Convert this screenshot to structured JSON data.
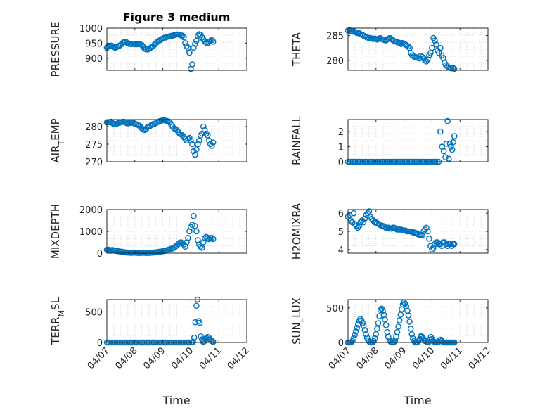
{
  "figure": {
    "title": "Figure 3 medium",
    "xlabel": "Time"
  },
  "style": {
    "marker_color": "#0072BD",
    "axis_color": "#262626",
    "grid_color": "#dcdcdc"
  },
  "chart_data": [
    {
      "type": "scatter",
      "ylabel": "PRESSURE",
      "ylim": [
        860,
        1000
      ],
      "yticks": [
        900,
        950,
        1000
      ],
      "xlim": [
        0,
        5
      ],
      "xticks": [
        "04/07",
        "04/08",
        "04/09",
        "04/10",
        "04/11",
        "04/12"
      ],
      "x": [
        0,
        0.04,
        0.08,
        0.12,
        0.16,
        0.2,
        0.25,
        0.3,
        0.35,
        0.4,
        0.45,
        0.5,
        0.55,
        0.6,
        0.65,
        0.7,
        0.75,
        0.8,
        0.85,
        0.9,
        0.95,
        1,
        1.05,
        1.1,
        1.15,
        1.2,
        1.25,
        1.3,
        1.35,
        1.4,
        1.45,
        1.5,
        1.55,
        1.6,
        1.65,
        1.7,
        1.75,
        1.8,
        1.85,
        1.9,
        1.95,
        2,
        2.05,
        2.1,
        2.15,
        2.2,
        2.25,
        2.3,
        2.35,
        2.4,
        2.45,
        2.5,
        2.55,
        2.6,
        2.65,
        2.7,
        2.75,
        2.8,
        2.85,
        2.9,
        2.95,
        3,
        3.05,
        3.1,
        3.15,
        3.2,
        3.25,
        3.3,
        3.35,
        3.4,
        3.45,
        3.5,
        3.55,
        3.6,
        3.65,
        3.7,
        3.75,
        3.8
      ],
      "y": [
        935,
        938,
        940,
        942,
        942,
        940,
        937,
        935,
        937,
        940,
        942,
        945,
        950,
        953,
        955,
        953,
        950,
        948,
        947,
        947,
        948,
        947,
        946,
        947,
        947,
        946,
        944,
        938,
        932,
        930,
        929,
        931,
        934,
        937,
        940,
        945,
        950,
        954,
        957,
        960,
        963,
        966,
        968,
        969,
        971,
        972,
        973,
        974,
        975,
        977,
        978,
        979,
        979,
        978,
        976,
        975,
        970,
        950,
        940,
        935,
        918,
        865,
        880,
        935,
        948,
        958,
        975,
        980,
        978,
        970,
        962,
        955,
        952,
        950,
        955,
        958,
        960,
        955
      ]
    },
    {
      "type": "scatter",
      "ylabel": "THETA",
      "ylim": [
        278,
        286.5
      ],
      "yticks": [
        280,
        285
      ],
      "xlim": [
        0,
        5
      ],
      "xticks": [
        "04/07",
        "04/08",
        "04/09",
        "04/10",
        "04/11",
        "04/12"
      ],
      "x": [
        0,
        0.05,
        0.1,
        0.15,
        0.2,
        0.25,
        0.3,
        0.35,
        0.4,
        0.45,
        0.5,
        0.55,
        0.6,
        0.65,
        0.7,
        0.75,
        0.8,
        0.85,
        0.9,
        0.95,
        1,
        1.05,
        1.1,
        1.15,
        1.2,
        1.25,
        1.3,
        1.35,
        1.4,
        1.45,
        1.5,
        1.55,
        1.6,
        1.65,
        1.7,
        1.75,
        1.8,
        1.85,
        1.9,
        1.95,
        2,
        2.05,
        2.1,
        2.15,
        2.2,
        2.25,
        2.3,
        2.35,
        2.4,
        2.45,
        2.5,
        2.55,
        2.6,
        2.65,
        2.7,
        2.75,
        2.8,
        2.85,
        2.9,
        2.95,
        3,
        3.05,
        3.1,
        3.15,
        3.2,
        3.25,
        3.3,
        3.35,
        3.4,
        3.45,
        3.5,
        3.55,
        3.6,
        3.65,
        3.7,
        3.75,
        3.8
      ],
      "y": [
        286,
        286.1,
        285.9,
        285.8,
        285.9,
        285.7,
        285.6,
        285.5,
        285.5,
        285.3,
        285.2,
        285,
        284.9,
        284.7,
        284.6,
        284.5,
        284.5,
        284.4,
        284.3,
        284.4,
        284.3,
        284.2,
        284.4,
        284.5,
        284.3,
        284.2,
        284.1,
        284,
        284.2,
        284.4,
        284.5,
        284.3,
        284.1,
        283.9,
        283.8,
        283.7,
        283.6,
        283.5,
        283.3,
        283.5,
        283.4,
        283.2,
        283,
        282.8,
        282.5,
        281.5,
        281,
        280.8,
        280.6,
        280.6,
        280.5,
        280.4,
        280.9,
        280.7,
        280.4,
        280,
        279.8,
        280.2,
        281,
        281.5,
        282.5,
        284.5,
        284,
        283.2,
        282,
        281.5,
        282.5,
        281,
        280.5,
        279.5,
        279,
        278.8,
        278.6,
        278.5,
        278.4,
        278.5,
        278.3
      ]
    },
    {
      "type": "scatter",
      "ylabel": "AIR_TEMP",
      "ylim": [
        270,
        282
      ],
      "yticks": [
        270,
        275,
        280
      ],
      "xlim": [
        0,
        5
      ],
      "xticks": [
        "04/07",
        "04/08",
        "04/09",
        "04/10",
        "04/11",
        "04/12"
      ],
      "x": [
        0,
        0.05,
        0.1,
        0.15,
        0.2,
        0.25,
        0.3,
        0.35,
        0.4,
        0.45,
        0.5,
        0.55,
        0.6,
        0.65,
        0.7,
        0.75,
        0.8,
        0.85,
        0.9,
        0.95,
        1,
        1.05,
        1.1,
        1.15,
        1.2,
        1.25,
        1.3,
        1.35,
        1.4,
        1.45,
        1.5,
        1.55,
        1.6,
        1.65,
        1.7,
        1.75,
        1.8,
        1.85,
        1.9,
        1.95,
        2,
        2.05,
        2.1,
        2.15,
        2.2,
        2.25,
        2.3,
        2.35,
        2.4,
        2.45,
        2.5,
        2.55,
        2.6,
        2.65,
        2.7,
        2.75,
        2.8,
        2.85,
        2.9,
        2.95,
        3,
        3.05,
        3.1,
        3.15,
        3.2,
        3.25,
        3.3,
        3.35,
        3.4,
        3.45,
        3.5,
        3.55,
        3.6,
        3.65,
        3.7,
        3.75,
        3.8
      ],
      "y": [
        281.2,
        281.3,
        281.2,
        281.4,
        281,
        280.8,
        280.7,
        280.8,
        281,
        281.1,
        281.2,
        281.3,
        281.4,
        281.2,
        281,
        280.9,
        281,
        281.1,
        281.2,
        281,
        280.8,
        280.7,
        280.5,
        280.3,
        280,
        279.5,
        279.2,
        279,
        279.3,
        279.8,
        280,
        280.2,
        280.5,
        280.7,
        280.8,
        281,
        281.2,
        281.4,
        281.6,
        281.7,
        281.8,
        281.8,
        281.7,
        281.6,
        281.5,
        281.2,
        280.5,
        280,
        279.5,
        279.3,
        279,
        278.5,
        278,
        277.8,
        277.5,
        277,
        276.5,
        276,
        276.5,
        276.8,
        276,
        275,
        273,
        272,
        273.5,
        275,
        276,
        277.5,
        278,
        280,
        279,
        278,
        277.5,
        276,
        275,
        274.5,
        275.5
      ]
    },
    {
      "type": "scatter",
      "ylabel": "RAINFALL",
      "ylim": [
        0,
        2.8
      ],
      "yticks": [
        0,
        1,
        2
      ],
      "xlim": [
        0,
        5
      ],
      "xticks": [
        "04/07",
        "04/08",
        "04/09",
        "04/10",
        "04/11",
        "04/12"
      ],
      "x": [
        0,
        0.06,
        0.12,
        0.18,
        0.24,
        0.3,
        0.36,
        0.42,
        0.48,
        0.54,
        0.6,
        0.66,
        0.72,
        0.78,
        0.84,
        0.9,
        0.96,
        1.02,
        1.08,
        1.14,
        1.2,
        1.26,
        1.32,
        1.38,
        1.44,
        1.5,
        1.56,
        1.62,
        1.68,
        1.74,
        1.8,
        1.86,
        1.92,
        1.98,
        2.04,
        2.1,
        2.16,
        2.22,
        2.28,
        2.34,
        2.4,
        2.46,
        2.52,
        2.58,
        2.64,
        2.7,
        2.76,
        2.82,
        2.88,
        2.94,
        3,
        3.06,
        3.12,
        3.18,
        3.24,
        3.3,
        3.36,
        3.42,
        3.48,
        3.52,
        3.56,
        3.6,
        3.64,
        3.68,
        3.72,
        3.76,
        3.8
      ],
      "y": [
        0,
        0,
        0,
        0,
        0,
        0,
        0,
        0,
        0,
        0,
        0,
        0,
        0,
        0,
        0,
        0,
        0,
        0,
        0,
        0,
        0,
        0,
        0,
        0,
        0,
        0,
        0,
        0,
        0,
        0,
        0,
        0,
        0,
        0,
        0,
        0,
        0,
        0,
        0,
        0,
        0,
        0,
        0,
        0,
        0,
        0,
        0,
        0,
        0,
        0,
        0,
        0,
        0,
        0,
        0,
        2,
        1,
        0.7,
        0.3,
        1.2,
        2.7,
        0.2,
        1.2,
        1,
        0.8,
        1.3,
        1.7
      ]
    },
    {
      "type": "scatter",
      "ylabel": "MIXDEPTH",
      "ylim": [
        0,
        2000
      ],
      "yticks": [
        0,
        1000,
        2000
      ],
      "xlim": [
        0,
        5
      ],
      "xticks": [
        "04/07",
        "04/08",
        "04/09",
        "04/10",
        "04/11",
        "04/12"
      ],
      "x": [
        0,
        0.05,
        0.1,
        0.15,
        0.2,
        0.25,
        0.3,
        0.35,
        0.4,
        0.45,
        0.5,
        0.55,
        0.6,
        0.65,
        0.7,
        0.75,
        0.8,
        0.85,
        0.9,
        0.95,
        1,
        1.05,
        1.1,
        1.15,
        1.2,
        1.25,
        1.3,
        1.35,
        1.4,
        1.45,
        1.5,
        1.55,
        1.6,
        1.65,
        1.7,
        1.75,
        1.8,
        1.85,
        1.9,
        1.95,
        2,
        2.05,
        2.1,
        2.15,
        2.2,
        2.25,
        2.3,
        2.35,
        2.4,
        2.45,
        2.5,
        2.55,
        2.6,
        2.65,
        2.7,
        2.75,
        2.8,
        2.85,
        2.9,
        2.95,
        3,
        3.05,
        3.1,
        3.15,
        3.2,
        3.25,
        3.3,
        3.35,
        3.4,
        3.45,
        3.5,
        3.55,
        3.6,
        3.65,
        3.7,
        3.75,
        3.8
      ],
      "y": [
        150,
        160,
        150,
        140,
        150,
        130,
        120,
        100,
        90,
        80,
        70,
        60,
        50,
        40,
        30,
        30,
        25,
        20,
        20,
        25,
        30,
        20,
        15,
        10,
        15,
        20,
        25,
        20,
        15,
        10,
        15,
        20,
        25,
        30,
        35,
        40,
        50,
        60,
        70,
        80,
        90,
        100,
        120,
        140,
        160,
        180,
        200,
        220,
        250,
        300,
        350,
        420,
        480,
        500,
        450,
        400,
        300,
        500,
        700,
        1000,
        1200,
        1300,
        1700,
        1250,
        1000,
        600,
        400,
        300,
        250,
        500,
        700,
        750,
        700,
        650,
        700,
        700,
        650
      ]
    },
    {
      "type": "scatter",
      "ylabel": "H2OMIXRA",
      "ylim": [
        3.8,
        6.2
      ],
      "yticks": [
        4,
        5,
        6
      ],
      "xlim": [
        0,
        5
      ],
      "xticks": [
        "04/07",
        "04/08",
        "04/09",
        "04/10",
        "04/11",
        "04/12"
      ],
      "x": [
        0,
        0.05,
        0.1,
        0.15,
        0.2,
        0.25,
        0.3,
        0.35,
        0.4,
        0.45,
        0.5,
        0.55,
        0.6,
        0.65,
        0.7,
        0.75,
        0.8,
        0.85,
        0.9,
        0.95,
        1,
        1.05,
        1.1,
        1.15,
        1.2,
        1.25,
        1.3,
        1.35,
        1.4,
        1.45,
        1.5,
        1.55,
        1.6,
        1.65,
        1.7,
        1.75,
        1.8,
        1.85,
        1.9,
        1.95,
        2,
        2.05,
        2.1,
        2.15,
        2.2,
        2.25,
        2.3,
        2.35,
        2.4,
        2.45,
        2.5,
        2.55,
        2.6,
        2.65,
        2.7,
        2.75,
        2.8,
        2.85,
        2.9,
        2.95,
        3,
        3.05,
        3.1,
        3.15,
        3.2,
        3.25,
        3.3,
        3.35,
        3.4,
        3.45,
        3.5,
        3.55,
        3.6,
        3.65,
        3.7,
        3.75,
        3.8
      ],
      "y": [
        5.8,
        5.9,
        5.6,
        5.5,
        6,
        5.4,
        5.3,
        5.2,
        5.3,
        5.5,
        5.6,
        5.5,
        5.7,
        5.9,
        6,
        6.1,
        5.8,
        5.7,
        5.6,
        5.5,
        5.5,
        5.45,
        5.4,
        5.35,
        5.3,
        5.3,
        5.25,
        5.2,
        5.2,
        5.2,
        5.15,
        5.15,
        5.2,
        5.2,
        5.15,
        5.1,
        5.1,
        5.1,
        5.1,
        5.05,
        5.05,
        5.05,
        5,
        5,
        5,
        5,
        4.95,
        4.95,
        4.9,
        4.9,
        4.85,
        4.8,
        4.8,
        4.8,
        5,
        5.1,
        5.2,
        5,
        4.6,
        4.2,
        4,
        4.1,
        4.3,
        4.4,
        4.4,
        4.3,
        4.3,
        4.2,
        4.4,
        4.4,
        4.3,
        4.2,
        4.3,
        4.3,
        4.2,
        4.3,
        4.3
      ]
    },
    {
      "type": "scatter",
      "ylabel": "TERR_MSL",
      "ylim": [
        0,
        700
      ],
      "yticks": [
        0,
        500
      ],
      "xlim": [
        0,
        5
      ],
      "xticks": [
        "04/07",
        "04/08",
        "04/09",
        "04/10",
        "04/11",
        "04/12"
      ],
      "x": [
        0,
        0.06,
        0.12,
        0.18,
        0.24,
        0.3,
        0.36,
        0.42,
        0.48,
        0.54,
        0.6,
        0.66,
        0.72,
        0.78,
        0.84,
        0.9,
        0.96,
        1.02,
        1.08,
        1.14,
        1.2,
        1.26,
        1.32,
        1.38,
        1.44,
        1.5,
        1.56,
        1.62,
        1.68,
        1.74,
        1.8,
        1.86,
        1.92,
        1.98,
        2.04,
        2.1,
        2.16,
        2.22,
        2.28,
        2.34,
        2.4,
        2.46,
        2.52,
        2.58,
        2.64,
        2.7,
        2.76,
        2.82,
        2.88,
        2.94,
        3,
        3.04,
        3.08,
        3.12,
        3.16,
        3.2,
        3.24,
        3.28,
        3.32,
        3.36,
        3.4,
        3.44,
        3.48,
        3.52,
        3.56,
        3.6,
        3.64,
        3.68,
        3.72,
        3.76,
        3.8
      ],
      "y": [
        0,
        0,
        0,
        0,
        0,
        0,
        0,
        0,
        0,
        0,
        0,
        0,
        0,
        0,
        0,
        0,
        0,
        0,
        0,
        0,
        0,
        0,
        0,
        0,
        0,
        0,
        0,
        0,
        0,
        0,
        0,
        0,
        0,
        0,
        0,
        0,
        0,
        0,
        0,
        0,
        0,
        0,
        0,
        0,
        0,
        0,
        0,
        0,
        0,
        0,
        0,
        5,
        10,
        80,
        330,
        600,
        700,
        350,
        320,
        100,
        50,
        10,
        20,
        60,
        70,
        90,
        80,
        50,
        40,
        20,
        10
      ]
    },
    {
      "type": "scatter",
      "ylabel": "SUN_FLUX",
      "ylim": [
        0,
        620
      ],
      "yticks": [
        0,
        500
      ],
      "xlim": [
        0,
        5
      ],
      "xticks": [
        "04/07",
        "04/08",
        "04/09",
        "04/10",
        "04/11",
        "04/12"
      ],
      "x": [
        0,
        0.04,
        0.08,
        0.12,
        0.16,
        0.2,
        0.24,
        0.28,
        0.32,
        0.36,
        0.4,
        0.44,
        0.48,
        0.52,
        0.56,
        0.6,
        0.64,
        0.68,
        0.72,
        0.76,
        0.8,
        0.84,
        0.88,
        0.92,
        0.96,
        1,
        1.04,
        1.08,
        1.12,
        1.16,
        1.2,
        1.24,
        1.28,
        1.32,
        1.36,
        1.4,
        1.44,
        1.48,
        1.52,
        1.56,
        1.6,
        1.64,
        1.68,
        1.72,
        1.76,
        1.8,
        1.84,
        1.88,
        1.92,
        1.96,
        2,
        2.04,
        2.08,
        2.12,
        2.16,
        2.2,
        2.24,
        2.28,
        2.32,
        2.36,
        2.4,
        2.44,
        2.48,
        2.52,
        2.56,
        2.6,
        2.64,
        2.68,
        2.72,
        2.76,
        2.8,
        2.84,
        2.88,
        2.92,
        2.96,
        3,
        3.04,
        3.08,
        3.12,
        3.16,
        3.2,
        3.24,
        3.28,
        3.32,
        3.36,
        3.4,
        3.44,
        3.48,
        3.52,
        3.56,
        3.6,
        3.64,
        3.68,
        3.72,
        3.76,
        3.8
      ],
      "y": [
        0,
        0,
        0,
        5,
        20,
        60,
        110,
        160,
        210,
        260,
        310,
        340,
        320,
        280,
        240,
        180,
        120,
        70,
        30,
        10,
        0,
        0,
        5,
        20,
        60,
        120,
        200,
        280,
        380,
        470,
        490,
        460,
        400,
        330,
        250,
        150,
        80,
        30,
        10,
        0,
        0,
        5,
        30,
        80,
        150,
        230,
        320,
        400,
        480,
        550,
        580,
        560,
        520,
        460,
        390,
        300,
        200,
        120,
        60,
        20,
        0,
        0,
        5,
        20,
        50,
        90,
        85,
        60,
        40,
        20,
        10,
        5,
        5,
        40,
        80,
        50,
        20,
        10,
        5,
        0,
        0,
        10,
        30,
        40,
        20,
        5,
        0,
        0,
        0,
        0,
        0,
        0,
        0,
        0,
        0,
        0
      ]
    }
  ]
}
